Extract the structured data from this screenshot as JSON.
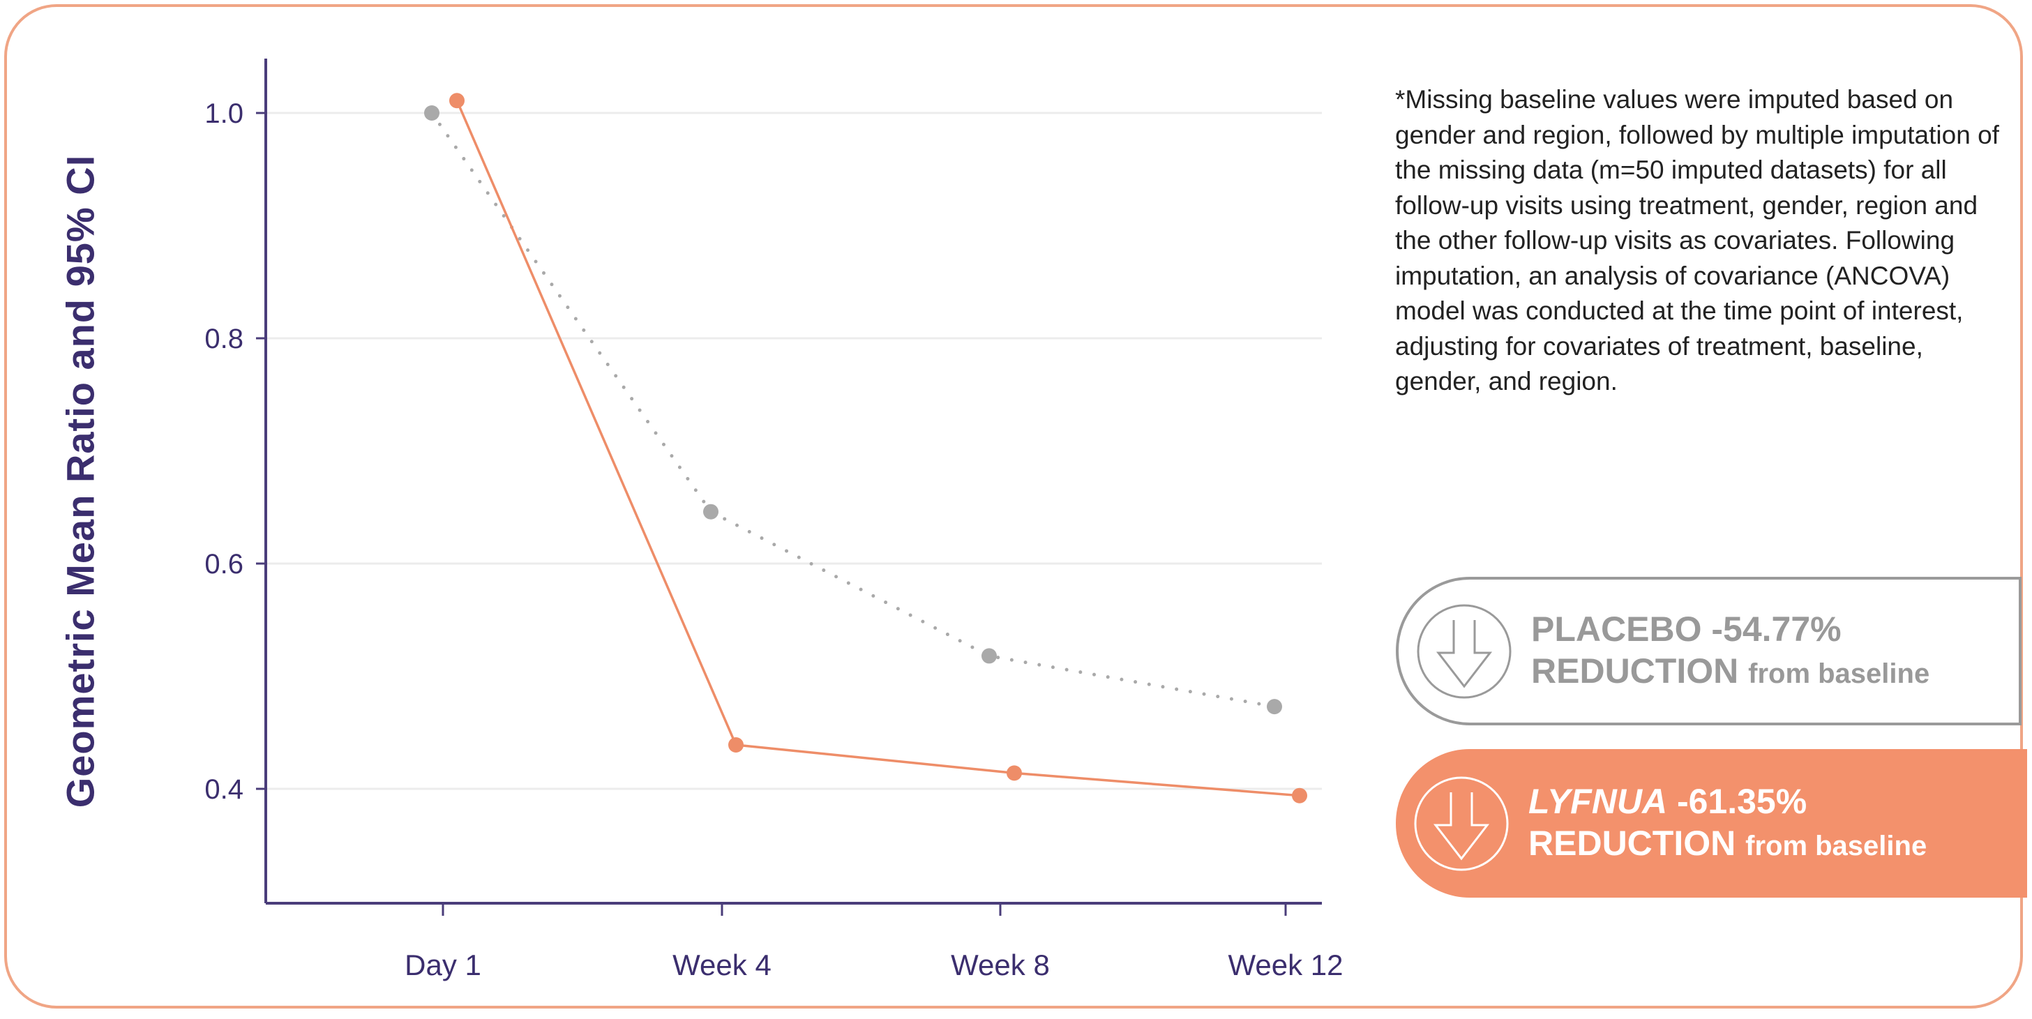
{
  "colors": {
    "placebo": "#a9a9a9",
    "lyfnua": "#ee8d68",
    "axis": "#4a3d7a",
    "frame": "#f0a585",
    "badge_lyfnua": "#f3916c"
  },
  "chart_data": {
    "type": "line",
    "title": "",
    "xlabel": "",
    "ylabel": "Geometric Mean Ratio and 95% CI",
    "categories": [
      "Day 1",
      "Week 4",
      "Week 8",
      "Week 12"
    ],
    "yticks": [
      "1.0",
      "0.8",
      "0.6",
      "0.4"
    ],
    "ytick_values": [
      1.0,
      0.8,
      0.6,
      0.4
    ],
    "ylim": [
      0.3,
      1.05
    ],
    "grid": true,
    "series": [
      {
        "name": "Placebo",
        "style": "dotted",
        "values": [
          1.0,
          0.646,
          0.518,
          0.473
        ]
      },
      {
        "name": "LYFNUA",
        "style": "solid",
        "values": [
          1.011,
          0.439,
          0.414,
          0.394
        ]
      }
    ]
  },
  "footnote": "*Missing baseline values were imputed based on gender and region, followed by multiple imputation of the missing data (m=50 imputed datasets) for all follow-up visits using treatment, gender, region and the other follow-up visits as covariates. Following imputation, an analysis of covariance (ANCOVA) model was conducted at the time point of interest, adjusting for covariates of treatment, baseline, gender, and region.",
  "badges": {
    "placebo": {
      "name": "PLACEBO",
      "value": "-54.77%",
      "reduction": "REDUCTION",
      "suffix": "from baseline"
    },
    "lyfnua": {
      "name": "LYFNUA",
      "value": "-61.35%",
      "reduction": "REDUCTION",
      "suffix": "from baseline"
    }
  }
}
